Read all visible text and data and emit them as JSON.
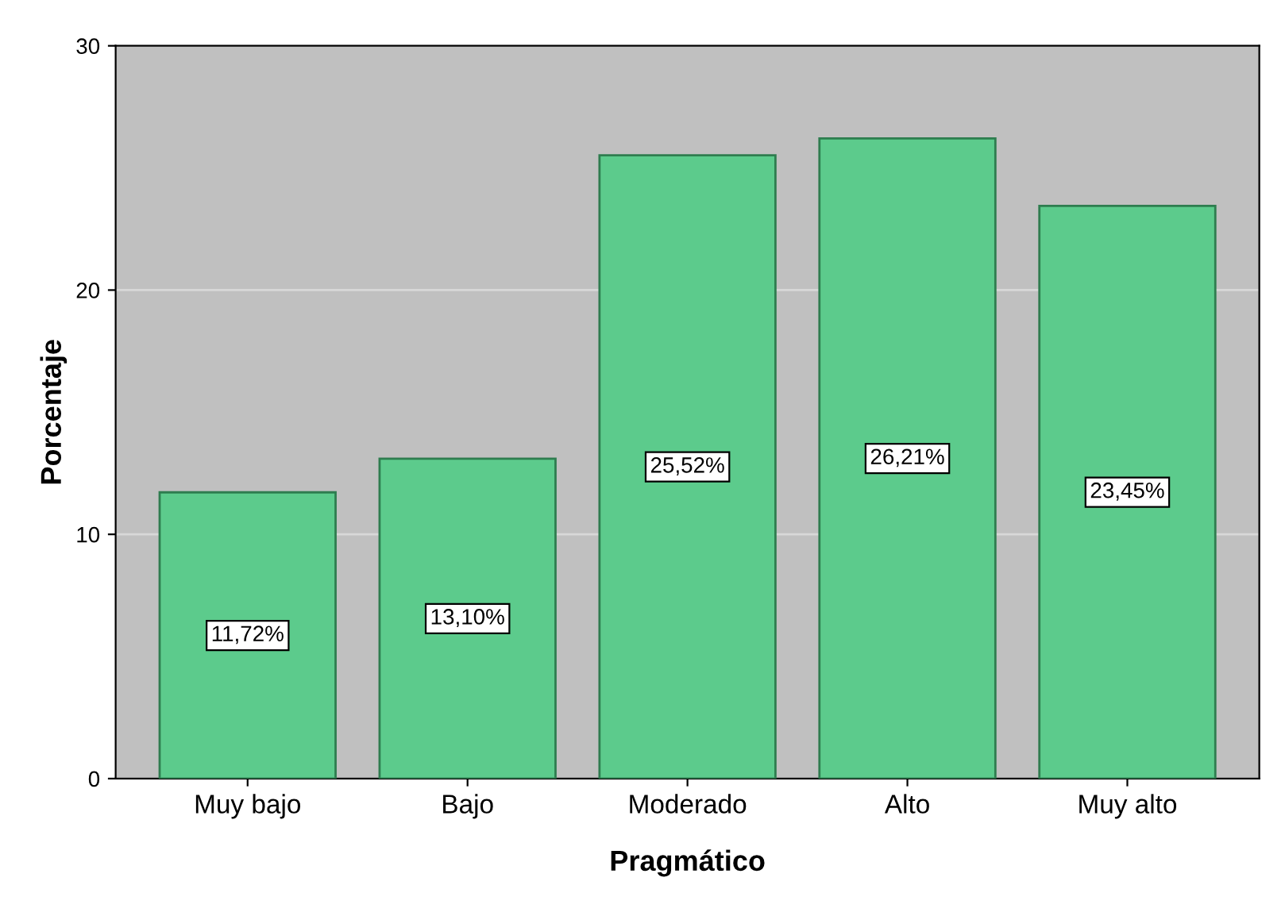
{
  "chart_data": {
    "type": "bar",
    "xlabel": "Pragmático",
    "ylabel": "Porcentaje",
    "categories": [
      "Muy bajo",
      "Bajo",
      "Moderado",
      "Alto",
      "Muy alto"
    ],
    "values": [
      11.72,
      13.1,
      25.52,
      26.21,
      23.45
    ],
    "value_labels": [
      "11,72%",
      "13,10%",
      "25,52%",
      "26,21%",
      "23,45%"
    ],
    "color": "#5ccb8c",
    "ylim": [
      0,
      30
    ],
    "yticks": [
      0,
      10,
      20,
      30
    ],
    "grid": "y",
    "legend": false
  }
}
